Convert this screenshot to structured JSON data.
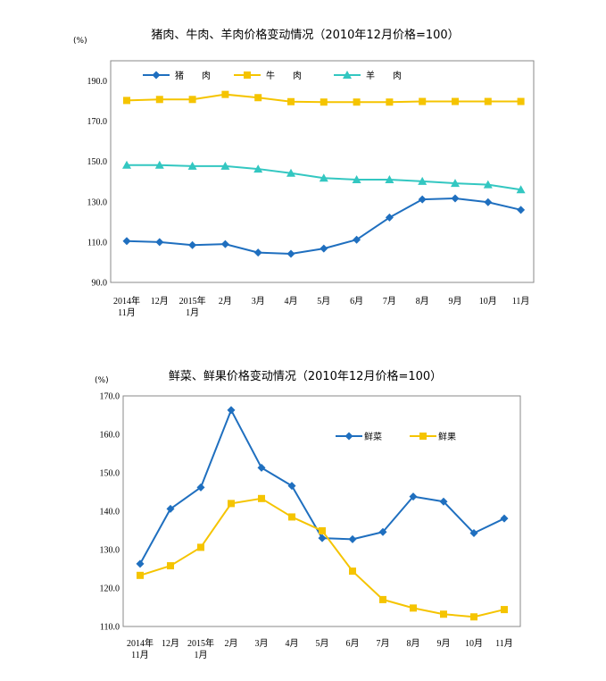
{
  "chart_data": [
    {
      "type": "line",
      "title": "猪肉、牛肉、羊肉价格变动情况（2010年12月价格=100）",
      "unit": "(%)",
      "ylim": [
        90,
        200
      ],
      "yticks": [
        "90.0",
        "110.0",
        "130.0",
        "150.0",
        "170.0",
        "190.0"
      ],
      "categories": [
        [
          "2014年",
          "11月"
        ],
        [
          "12月"
        ],
        [
          "2015年",
          "1月"
        ],
        [
          "2月"
        ],
        [
          "3月"
        ],
        [
          "4月"
        ],
        [
          "5月"
        ],
        [
          "6月"
        ],
        [
          "7月"
        ],
        [
          "8月"
        ],
        [
          "9月"
        ],
        [
          "10月"
        ],
        [
          "11月"
        ]
      ],
      "grid": false,
      "legend": "top-left",
      "series": [
        {
          "name": "猪　　肉",
          "color": "#1F6FBF",
          "marker": "diamond",
          "values": [
            110.5,
            110.0,
            108.5,
            109.0,
            104.8,
            104.2,
            106.8,
            111.2,
            122.2,
            131.2,
            131.7,
            129.8,
            126.0
          ]
        },
        {
          "name": "牛　　肉",
          "color": "#F5C400",
          "marker": "square",
          "values": [
            180.3,
            180.8,
            180.8,
            183.3,
            181.7,
            179.7,
            179.5,
            179.5,
            179.5,
            179.8,
            179.8,
            179.8,
            179.8
          ]
        },
        {
          "name": "羊　　肉",
          "color": "#33C7C1",
          "marker": "triangle",
          "values": [
            148.2,
            148.2,
            147.7,
            147.7,
            146.3,
            144.2,
            141.8,
            141.0,
            141.0,
            140.2,
            139.2,
            138.5,
            136.0
          ]
        }
      ]
    },
    {
      "type": "line",
      "title": "鲜菜、鲜果价格变动情况（2010年12月价格=100）",
      "unit": "(%)",
      "ylim": [
        110,
        170
      ],
      "yticks": [
        "110.0",
        "120.0",
        "130.0",
        "140.0",
        "150.0",
        "160.0",
        "170.0"
      ],
      "categories": [
        [
          "2014年",
          "11月"
        ],
        [
          "12月"
        ],
        [
          "2015年",
          "1月"
        ],
        [
          "2月"
        ],
        [
          "3月"
        ],
        [
          "4月"
        ],
        [
          "5月"
        ],
        [
          "6月"
        ],
        [
          "7月"
        ],
        [
          "8月"
        ],
        [
          "9月"
        ],
        [
          "10月"
        ],
        [
          "11月"
        ]
      ],
      "grid": false,
      "legend": "top-right",
      "series": [
        {
          "name": "鲜菜",
          "color": "#1F6FBF",
          "marker": "diamond",
          "values": [
            126.3,
            140.6,
            146.2,
            166.3,
            151.3,
            146.6,
            133.0,
            132.7,
            134.6,
            143.8,
            142.5,
            134.3,
            138.1
          ]
        },
        {
          "name": "鲜果",
          "color": "#F5C400",
          "marker": "square",
          "values": [
            123.3,
            125.8,
            130.6,
            142.0,
            143.3,
            138.5,
            134.9,
            124.4,
            117.0,
            114.8,
            113.2,
            112.5,
            114.4
          ]
        }
      ]
    }
  ]
}
